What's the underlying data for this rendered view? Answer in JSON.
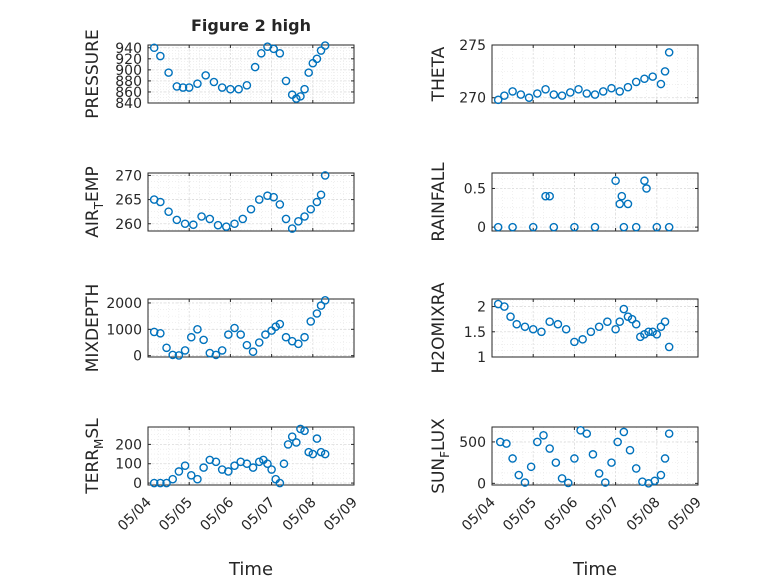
{
  "title": "Figure 2 high",
  "xlabel": "Time",
  "x_tick_labels": [
    "05/04",
    "05/05",
    "05/06",
    "05/07",
    "05/08",
    "05/09"
  ],
  "marker_color": "#0072bd",
  "chart_data": [
    {
      "type": "scatter",
      "title": "Figure 2 high",
      "ylabel": "PRESSURE",
      "xlabel": "",
      "xlim": [
        "05/04",
        "05/09"
      ],
      "ylim": [
        840,
        945
      ],
      "yticks": [
        840,
        860,
        880,
        900,
        920,
        940
      ],
      "grid": true,
      "x": [
        0.15,
        0.3,
        0.5,
        0.7,
        0.85,
        1.0,
        1.2,
        1.4,
        1.6,
        1.8,
        2.0,
        2.2,
        2.4,
        2.6,
        2.75,
        2.9,
        3.05,
        3.2,
        3.35,
        3.5,
        3.6,
        3.7,
        3.8,
        3.9,
        4.0,
        4.1,
        4.2,
        4.3
      ],
      "y": [
        940,
        925,
        895,
        870,
        868,
        868,
        875,
        890,
        878,
        868,
        865,
        865,
        872,
        905,
        930,
        942,
        938,
        930,
        880,
        855,
        848,
        852,
        865,
        895,
        912,
        920,
        935,
        944
      ]
    },
    {
      "type": "scatter",
      "ylabel": "THETA",
      "xlabel": "",
      "xlim": [
        "05/04",
        "05/09"
      ],
      "ylim": [
        269.5,
        275
      ],
      "yticks": [
        270,
        275
      ],
      "grid": true,
      "x": [
        0.15,
        0.3,
        0.5,
        0.7,
        0.9,
        1.1,
        1.3,
        1.5,
        1.7,
        1.9,
        2.1,
        2.3,
        2.5,
        2.7,
        2.9,
        3.1,
        3.3,
        3.5,
        3.7,
        3.9,
        4.1,
        4.2,
        4.3
      ],
      "y": [
        269.8,
        270.2,
        270.6,
        270.3,
        270.0,
        270.4,
        270.8,
        270.3,
        270.2,
        270.5,
        270.8,
        270.4,
        270.3,
        270.6,
        270.9,
        270.6,
        271.0,
        271.5,
        271.8,
        272.0,
        271.3,
        272.5,
        274.3
      ]
    },
    {
      "type": "scatter",
      "ylabel": "AIR_TEMP",
      "xlabel": "",
      "xlim": [
        "05/04",
        "05/09"
      ],
      "ylim": [
        258.5,
        270.5
      ],
      "yticks": [
        260,
        265,
        270
      ],
      "grid": true,
      "x": [
        0.15,
        0.3,
        0.5,
        0.7,
        0.9,
        1.1,
        1.3,
        1.5,
        1.7,
        1.9,
        2.1,
        2.3,
        2.5,
        2.7,
        2.9,
        3.05,
        3.2,
        3.35,
        3.5,
        3.65,
        3.8,
        3.95,
        4.1,
        4.2,
        4.3
      ],
      "y": [
        265,
        264.5,
        262.5,
        260.8,
        260.0,
        259.8,
        261.5,
        261.0,
        259.7,
        259.4,
        260.0,
        261.0,
        263.0,
        265.0,
        265.8,
        265.5,
        264.0,
        261.0,
        259.0,
        260.5,
        261.5,
        263.0,
        264.5,
        266.0,
        270.0
      ]
    },
    {
      "type": "scatter",
      "ylabel": "RAINFALL",
      "xlabel": "",
      "xlim": [
        "05/04",
        "05/09"
      ],
      "ylim": [
        -0.05,
        0.7
      ],
      "yticks": [
        0,
        0.5
      ],
      "grid": true,
      "x": [
        0.15,
        0.5,
        1.0,
        1.3,
        1.4,
        1.5,
        2.0,
        2.5,
        3.0,
        3.1,
        3.15,
        3.2,
        3.3,
        3.5,
        3.7,
        3.75,
        4.0,
        4.3
      ],
      "y": [
        0,
        0,
        0,
        0.4,
        0.4,
        0,
        0,
        0,
        0.6,
        0.3,
        0.4,
        0,
        0.3,
        0,
        0.6,
        0.5,
        0,
        0
      ]
    },
    {
      "type": "scatter",
      "ylabel": "MIXDEPTH",
      "xlabel": "",
      "xlim": [
        "05/04",
        "05/09"
      ],
      "ylim": [
        -50,
        2150
      ],
      "yticks": [
        0,
        1000,
        2000
      ],
      "grid": true,
      "x": [
        0.15,
        0.3,
        0.45,
        0.6,
        0.75,
        0.9,
        1.05,
        1.2,
        1.35,
        1.5,
        1.65,
        1.8,
        1.95,
        2.1,
        2.25,
        2.4,
        2.55,
        2.7,
        2.85,
        3.0,
        3.1,
        3.2,
        3.35,
        3.5,
        3.65,
        3.8,
        3.95,
        4.1,
        4.2,
        4.3
      ],
      "y": [
        900,
        850,
        300,
        30,
        10,
        200,
        700,
        1000,
        600,
        100,
        30,
        200,
        800,
        1050,
        800,
        400,
        150,
        500,
        800,
        950,
        1100,
        1200,
        700,
        550,
        450,
        700,
        1300,
        1600,
        1900,
        2100
      ]
    },
    {
      "type": "scatter",
      "ylabel": "H2OMIXRA",
      "xlabel": "",
      "xlim": [
        "05/04",
        "05/09"
      ],
      "ylim": [
        1,
        2.15
      ],
      "yticks": [
        1,
        1.5,
        2
      ],
      "grid": true,
      "x": [
        0.15,
        0.3,
        0.45,
        0.6,
        0.8,
        1.0,
        1.2,
        1.4,
        1.6,
        1.8,
        2.0,
        2.2,
        2.4,
        2.6,
        2.8,
        3.0,
        3.1,
        3.2,
        3.3,
        3.4,
        3.5,
        3.6,
        3.7,
        3.8,
        3.9,
        4.0,
        4.1,
        4.2,
        4.3
      ],
      "y": [
        2.05,
        2.0,
        1.8,
        1.65,
        1.6,
        1.55,
        1.5,
        1.7,
        1.65,
        1.55,
        1.3,
        1.35,
        1.5,
        1.6,
        1.7,
        1.55,
        1.7,
        1.95,
        1.8,
        1.75,
        1.65,
        1.4,
        1.45,
        1.5,
        1.5,
        1.45,
        1.6,
        1.7,
        1.2
      ]
    },
    {
      "type": "scatter",
      "ylabel": "TERR_MSL",
      "xlabel": "Time",
      "xlim": [
        "05/04",
        "05/09"
      ],
      "ylim": [
        -10,
        290
      ],
      "yticks": [
        0,
        100,
        200
      ],
      "grid": true,
      "x": [
        0.15,
        0.3,
        0.45,
        0.6,
        0.75,
        0.9,
        1.05,
        1.2,
        1.35,
        1.5,
        1.65,
        1.8,
        1.95,
        2.1,
        2.25,
        2.4,
        2.55,
        2.7,
        2.8,
        2.9,
        3.0,
        3.1,
        3.2,
        3.3,
        3.4,
        3.5,
        3.6,
        3.7,
        3.8,
        3.9,
        4.0,
        4.1,
        4.2,
        4.3
      ],
      "y": [
        0,
        0,
        0,
        20,
        60,
        90,
        40,
        20,
        80,
        120,
        110,
        70,
        60,
        90,
        110,
        100,
        80,
        110,
        120,
        100,
        70,
        20,
        0,
        100,
        200,
        240,
        210,
        280,
        270,
        160,
        150,
        230,
        160,
        150
      ]
    },
    {
      "type": "scatter",
      "ylabel": "SUN_FLUX",
      "xlabel": "Time",
      "xlim": [
        "05/04",
        "05/09"
      ],
      "ylim": [
        -20,
        680
      ],
      "yticks": [
        0,
        500
      ],
      "grid": true,
      "x": [
        0.2,
        0.35,
        0.5,
        0.65,
        0.8,
        0.95,
        1.1,
        1.25,
        1.4,
        1.55,
        1.7,
        1.85,
        2.0,
        2.15,
        2.3,
        2.45,
        2.6,
        2.75,
        2.9,
        3.05,
        3.2,
        3.35,
        3.5,
        3.65,
        3.8,
        3.95,
        4.1,
        4.2,
        4.3
      ],
      "y": [
        500,
        480,
        300,
        100,
        10,
        200,
        500,
        580,
        420,
        250,
        60,
        5,
        300,
        640,
        600,
        350,
        120,
        10,
        250,
        500,
        620,
        400,
        180,
        20,
        0,
        30,
        100,
        300,
        600
      ]
    }
  ]
}
